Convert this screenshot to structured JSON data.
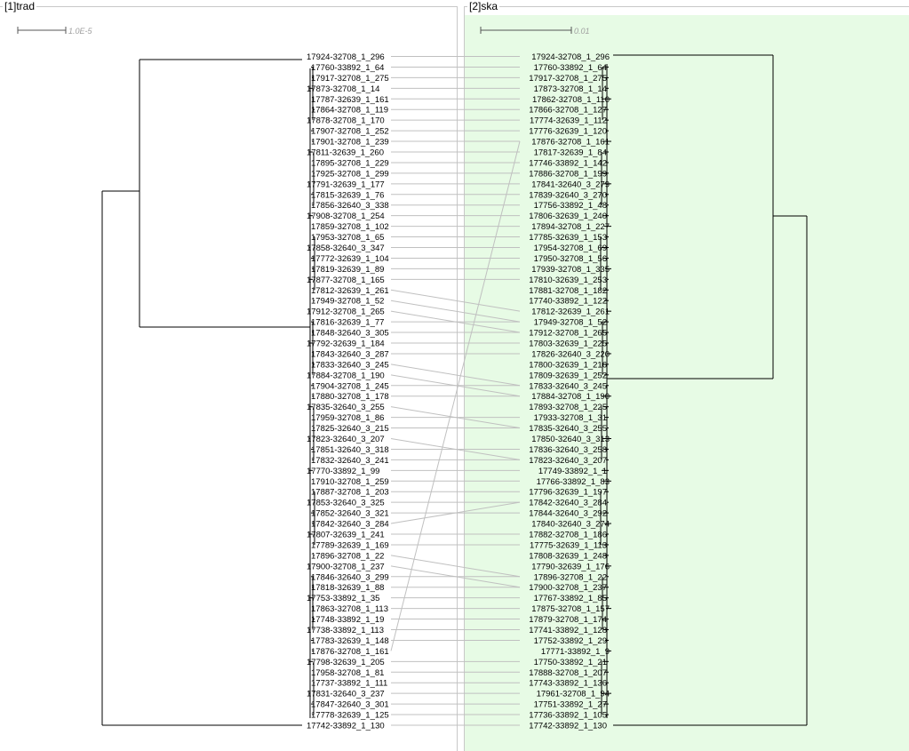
{
  "left_panel": {
    "title": "[1]trad",
    "scale_label": "1.0E-5",
    "leaves": [
      "17924-32708_1_296",
      "17760-33892_1_64",
      "17917-32708_1_275",
      "17873-32708_1_14",
      "17787-32639_1_161",
      "17864-32708_1_119",
      "17878-32708_1_170",
      "17907-32708_1_252",
      "17901-32708_1_239",
      "17811-32639_1_260",
      "17895-32708_1_229",
      "17925-32708_1_299",
      "17791-32639_1_177",
      "17815-32639_1_76",
      "17856-32640_3_338",
      "17908-32708_1_254",
      "17859-32708_1_102",
      "17953-32708_1_65",
      "17858-32640_3_347",
      "17772-32639_1_104",
      "17819-32639_1_89",
      "17877-32708_1_165",
      "17812-32639_1_261",
      "17949-32708_1_52",
      "17912-32708_1_265",
      "17816-32639_1_77",
      "17848-32640_3_305",
      "17792-32639_1_184",
      "17843-32640_3_287",
      "17833-32640_3_245",
      "17884-32708_1_190",
      "17904-32708_1_245",
      "17880-32708_1_178",
      "17835-32640_3_255",
      "17959-32708_1_86",
      "17825-32640_3_215",
      "17823-32640_3_207",
      "17851-32640_3_318",
      "17832-32640_3_241",
      "17770-33892_1_99",
      "17910-32708_1_259",
      "17887-32708_1_203",
      "17853-32640_3_325",
      "17852-32640_3_321",
      "17842-32640_3_284",
      "17807-32639_1_241",
      "17789-32639_1_169",
      "17896-32708_1_22",
      "17900-32708_1_237",
      "17846-32640_3_299",
      "17818-32639_1_88",
      "17753-33892_1_35",
      "17863-32708_1_113",
      "17748-33892_1_19",
      "17738-33892_1_113",
      "17783-32639_1_148",
      "17876-32708_1_161",
      "17798-32639_1_205",
      "17958-32708_1_81",
      "17737-33892_1_111",
      "17831-32640_3_237",
      "17847-32640_3_301",
      "17778-32639_1_125",
      "17742-33892_1_130"
    ]
  },
  "right_panel": {
    "title": "[2]ska",
    "scale_label": "0.01",
    "leaves": [
      "17924-32708_1_296",
      "17760-33892_1_64",
      "17917-32708_1_275",
      "17873-32708_1_14",
      "17862-32708_1_110",
      "17866-32708_1_127",
      "17774-32639_1_112",
      "17776-32639_1_120",
      "17876-32708_1_161",
      "17817-32639_1_84",
      "17746-33892_1_142",
      "17886-32708_1_199",
      "17841-32640_3_279",
      "17839-32640_3_270",
      "17756-33892_1_48",
      "17806-32639_1_240",
      "17894-32708_1_227",
      "17785-32639_1_153",
      "17954-32708_1_69",
      "17950-32708_1_56",
      "17939-32708_1_335",
      "17810-32639_1_253",
      "17881-32708_1_182",
      "17740-33892_1_122",
      "17812-32639_1_261",
      "17949-32708_1_52",
      "17912-32708_1_265",
      "17803-32639_1_225",
      "17826-32640_3_220",
      "17800-32639_1_216",
      "17809-32639_1_252",
      "17833-32640_3_245",
      "17884-32708_1_190",
      "17893-32708_1_225",
      "17933-32708_1_31",
      "17835-32640_3_255",
      "17850-32640_3_313",
      "17836-32640_3_258",
      "17823-32640_3_207",
      "17749-33892_1_1",
      "17766-33892_1_83",
      "17796-32639_1_197",
      "17842-32640_3_284",
      "17844-32640_3_292",
      "17840-32640_3_274",
      "17882-32708_1_186",
      "17775-32639_1_113",
      "17808-32639_1_248",
      "17790-32639_1_176",
      "17896-32708_1_22",
      "17900-32708_1_237",
      "17767-33892_1_85",
      "17875-32708_1_157",
      "17879-32708_1_174",
      "17741-33892_1_128",
      "17752-33892_1_29",
      "17771-33892_1_9",
      "17750-33892_1_21",
      "17888-32708_1_207",
      "17743-33892_1_136",
      "17961-32708_1_94",
      "17751-33892_1_27",
      "17736-33892_1_105",
      "17742-33892_1_130"
    ]
  },
  "colors": {
    "right_background": "#e7fbe5",
    "branch": "#000000",
    "connector": "#c0c0c0",
    "scale_label": "#a0a0a0"
  }
}
